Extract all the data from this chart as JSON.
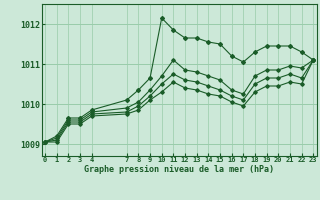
{
  "title": "Graphe pression niveau de la mer (hPa)",
  "bg_color": "#cce8d8",
  "grid_color": "#99ccaa",
  "line_color": "#1a5c28",
  "ylim": [
    1008.7,
    1012.5
  ],
  "xlim": [
    -0.3,
    23.3
  ],
  "yticks": [
    1009,
    1010,
    1011,
    1012
  ],
  "xticks": [
    0,
    1,
    2,
    3,
    4,
    7,
    8,
    9,
    10,
    11,
    12,
    13,
    14,
    15,
    16,
    17,
    18,
    19,
    20,
    21,
    22,
    23
  ],
  "series": [
    [
      1009.05,
      1009.2,
      1009.65,
      1009.65,
      1009.85,
      null,
      null,
      1010.1,
      1010.35,
      1010.65,
      1012.15,
      1011.85,
      1011.65,
      1011.65,
      1011.55,
      1011.5,
      1011.2,
      1011.05,
      1011.3,
      1011.45,
      1011.45,
      1011.45,
      1011.3,
      1011.1
    ],
    [
      1009.05,
      1009.15,
      1009.6,
      1009.6,
      1009.8,
      null,
      null,
      1009.9,
      1010.05,
      1010.35,
      1010.7,
      1011.1,
      1010.85,
      1010.8,
      1010.7,
      1010.6,
      1010.35,
      1010.25,
      1010.7,
      1010.85,
      1010.85,
      1010.95,
      1010.9,
      1011.1
    ],
    [
      1009.05,
      1009.1,
      1009.55,
      1009.55,
      1009.75,
      null,
      null,
      1009.8,
      1009.95,
      1010.2,
      1010.5,
      1010.75,
      1010.6,
      1010.55,
      1010.45,
      1010.35,
      1010.2,
      1010.1,
      1010.5,
      1010.65,
      1010.65,
      1010.75,
      1010.65,
      1011.1
    ],
    [
      1009.05,
      1009.05,
      1009.5,
      1009.5,
      1009.7,
      null,
      null,
      1009.75,
      1009.85,
      1010.1,
      1010.3,
      1010.55,
      1010.4,
      1010.35,
      1010.25,
      1010.2,
      1010.05,
      1009.95,
      1010.3,
      1010.45,
      1010.45,
      1010.55,
      1010.5,
      1011.1
    ]
  ]
}
